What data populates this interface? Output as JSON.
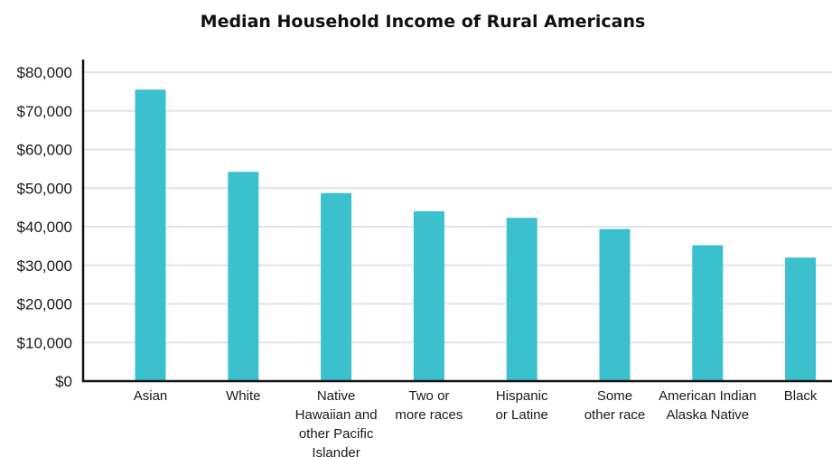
{
  "chart_data": {
    "type": "bar",
    "title": "Median Household Income of Rural Americans",
    "xlabel": "",
    "ylabel": "",
    "ylim": [
      0,
      80000
    ],
    "yticks": [
      0,
      10000,
      20000,
      30000,
      40000,
      50000,
      60000,
      70000,
      80000
    ],
    "ytick_labels": [
      "$0",
      "$10,000",
      "$20,000",
      "$30,000",
      "$40,000",
      "$50,000",
      "$60,000",
      "$70,000",
      "$80,000"
    ],
    "grid": true,
    "categories": [
      [
        "Asian"
      ],
      [
        "White"
      ],
      [
        "Native",
        "Hawaiian and",
        "other Pacific",
        "Islander"
      ],
      [
        "Two or",
        "more races"
      ],
      [
        "Hispanic",
        "or Latine"
      ],
      [
        "Some",
        "other race"
      ],
      [
        "American Indian",
        "Alaska Native"
      ],
      [
        "Black"
      ]
    ],
    "values": [
      75500,
      54200,
      48700,
      44000,
      42300,
      39400,
      35200,
      32000
    ],
    "colors": {
      "bar": "#3bc1cd",
      "grid": "#e4e4e4",
      "axis": "#111111"
    }
  }
}
